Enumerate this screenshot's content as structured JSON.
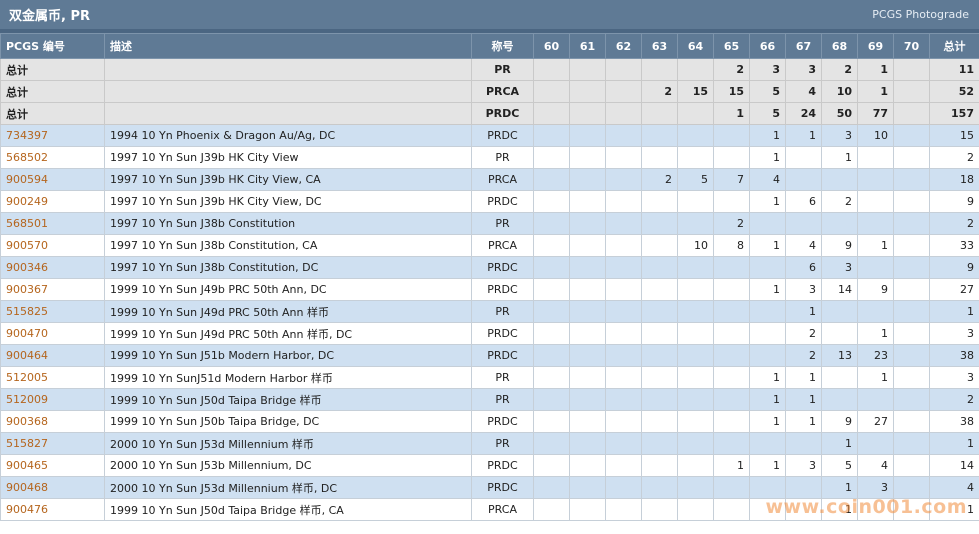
{
  "header": {
    "title": "双金属币, PR",
    "brand": "PCGS Photograde"
  },
  "columns": {
    "code": "PCGS 编号",
    "desc": "描述",
    "designation": "称号",
    "grades": [
      "60",
      "61",
      "62",
      "63",
      "64",
      "65",
      "66",
      "67",
      "68",
      "69",
      "70"
    ],
    "total": "总计"
  },
  "totals": [
    {
      "label": "总计",
      "designation": "PR",
      "counts": [
        "",
        "",
        "",
        "",
        "",
        "2",
        "3",
        "3",
        "2",
        "1",
        ""
      ],
      "total": "11"
    },
    {
      "label": "总计",
      "designation": "PRCA",
      "counts": [
        "",
        "",
        "",
        "2",
        "15",
        "15",
        "5",
        "4",
        "10",
        "1",
        ""
      ],
      "total": "52"
    },
    {
      "label": "总计",
      "designation": "PRDC",
      "counts": [
        "",
        "",
        "",
        "",
        "",
        "1",
        "5",
        "24",
        "50",
        "77",
        ""
      ],
      "total": "157"
    }
  ],
  "rows": [
    {
      "code": "734397",
      "desc": "1994 10 Yn Phoenix & Dragon Au/Ag, DC",
      "designation": "PRDC",
      "counts": [
        "",
        "",
        "",
        "",
        "",
        "",
        "1",
        "1",
        "3",
        "10",
        ""
      ],
      "total": "15"
    },
    {
      "code": "568502",
      "desc": "1997 10 Yn Sun J39b HK City View",
      "designation": "PR",
      "counts": [
        "",
        "",
        "",
        "",
        "",
        "",
        "1",
        "",
        "1",
        "",
        ""
      ],
      "total": "2"
    },
    {
      "code": "900594",
      "desc": "1997 10 Yn Sun J39b HK City View, CA",
      "designation": "PRCA",
      "counts": [
        "",
        "",
        "",
        "2",
        "5",
        "7",
        "4",
        "",
        "",
        "",
        ""
      ],
      "total": "18"
    },
    {
      "code": "900249",
      "desc": "1997 10 Yn Sun J39b HK City View, DC",
      "designation": "PRDC",
      "counts": [
        "",
        "",
        "",
        "",
        "",
        "",
        "1",
        "6",
        "2",
        "",
        ""
      ],
      "total": "9"
    },
    {
      "code": "568501",
      "desc": "1997 10 Yn Sun J38b Constitution",
      "designation": "PR",
      "counts": [
        "",
        "",
        "",
        "",
        "",
        "2",
        "",
        "",
        "",
        "",
        ""
      ],
      "total": "2"
    },
    {
      "code": "900570",
      "desc": "1997 10 Yn Sun J38b Constitution, CA",
      "designation": "PRCA",
      "counts": [
        "",
        "",
        "",
        "",
        "10",
        "8",
        "1",
        "4",
        "9",
        "1",
        ""
      ],
      "total": "33"
    },
    {
      "code": "900346",
      "desc": "1997 10 Yn Sun J38b Constitution, DC",
      "designation": "PRDC",
      "counts": [
        "",
        "",
        "",
        "",
        "",
        "",
        "",
        "6",
        "3",
        "",
        ""
      ],
      "total": "9"
    },
    {
      "code": "900367",
      "desc": "1999 10 Yn Sun J49b PRC 50th Ann, DC",
      "designation": "PRDC",
      "counts": [
        "",
        "",
        "",
        "",
        "",
        "",
        "1",
        "3",
        "14",
        "9",
        ""
      ],
      "total": "27"
    },
    {
      "code": "515825",
      "desc": "1999 10 Yn Sun J49d PRC 50th Ann 样币",
      "designation": "PR",
      "counts": [
        "",
        "",
        "",
        "",
        "",
        "",
        "",
        "1",
        "",
        "",
        ""
      ],
      "total": "1"
    },
    {
      "code": "900470",
      "desc": "1999 10 Yn Sun J49d PRC 50th Ann 样币, DC",
      "designation": "PRDC",
      "counts": [
        "",
        "",
        "",
        "",
        "",
        "",
        "",
        "2",
        "",
        "1",
        ""
      ],
      "total": "3"
    },
    {
      "code": "900464",
      "desc": "1999 10 Yn Sun J51b Modern Harbor, DC",
      "designation": "PRDC",
      "counts": [
        "",
        "",
        "",
        "",
        "",
        "",
        "",
        "2",
        "13",
        "23",
        ""
      ],
      "total": "38"
    },
    {
      "code": "512005",
      "desc": "1999 10 Yn SunJ51d Modern Harbor 样币",
      "designation": "PR",
      "counts": [
        "",
        "",
        "",
        "",
        "",
        "",
        "1",
        "1",
        "",
        "1",
        ""
      ],
      "total": "3"
    },
    {
      "code": "512009",
      "desc": "1999 10 Yn Sun J50d Taipa Bridge 样币",
      "designation": "PR",
      "counts": [
        "",
        "",
        "",
        "",
        "",
        "",
        "1",
        "1",
        "",
        "",
        ""
      ],
      "total": "2"
    },
    {
      "code": "900368",
      "desc": "1999 10 Yn Sun J50b Taipa Bridge, DC",
      "designation": "PRDC",
      "counts": [
        "",
        "",
        "",
        "",
        "",
        "",
        "1",
        "1",
        "9",
        "27",
        ""
      ],
      "total": "38"
    },
    {
      "code": "515827",
      "desc": "2000 10 Yn Sun J53d Millennium 样币",
      "designation": "PR",
      "counts": [
        "",
        "",
        "",
        "",
        "",
        "",
        "",
        "",
        "1",
        "",
        ""
      ],
      "total": "1"
    },
    {
      "code": "900465",
      "desc": "2000 10 Yn Sun J53b Millennium, DC",
      "designation": "PRDC",
      "counts": [
        "",
        "",
        "",
        "",
        "",
        "1",
        "1",
        "3",
        "5",
        "4",
        ""
      ],
      "total": "14"
    },
    {
      "code": "900468",
      "desc": "2000 10 Yn Sun J53d Millennium 样币, DC",
      "designation": "PRDC",
      "counts": [
        "",
        "",
        "",
        "",
        "",
        "",
        "",
        "",
        "1",
        "3",
        ""
      ],
      "total": "4"
    },
    {
      "code": "900476",
      "desc": "1999 10 Yn Sun J50d Taipa Bridge 样币, CA",
      "designation": "PRCA",
      "counts": [
        "",
        "",
        "",
        "",
        "",
        "",
        "",
        "",
        "1",
        "",
        ""
      ],
      "total": "1"
    }
  ],
  "watermark": "www.coin001.com"
}
